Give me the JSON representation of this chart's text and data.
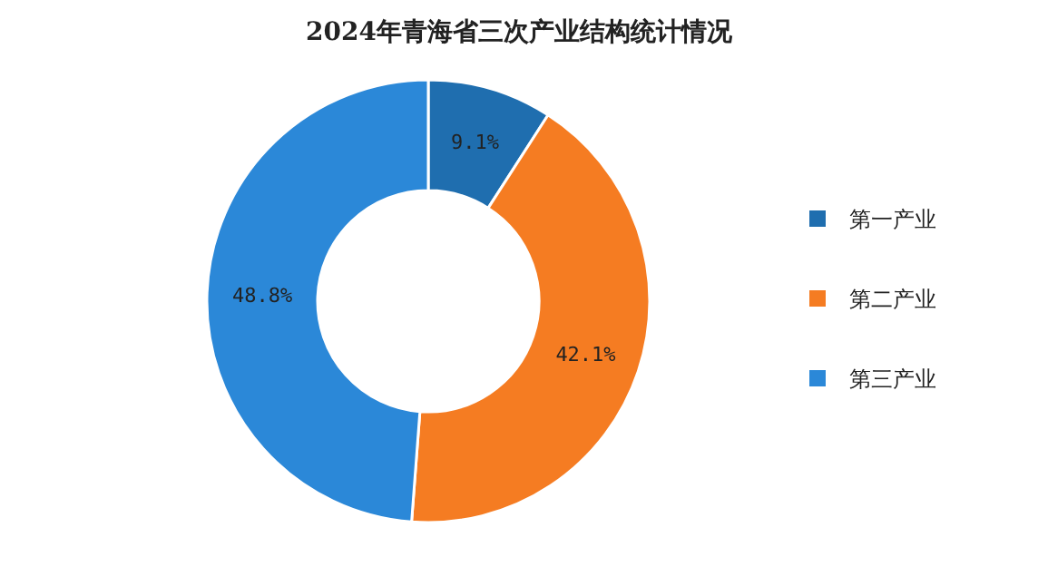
{
  "chart_data": {
    "type": "donut",
    "title": "2024年青海省三次产业结构统计情况",
    "categories": [
      "第一产业",
      "第二产业",
      "第三产业"
    ],
    "values": [
      9.1,
      42.1,
      48.8
    ],
    "colors": [
      "#1f6eaf",
      "#f57c22",
      "#2b88d8"
    ],
    "value_labels": [
      "9.1%",
      "42.1%",
      "48.8%"
    ],
    "legend": "right"
  }
}
